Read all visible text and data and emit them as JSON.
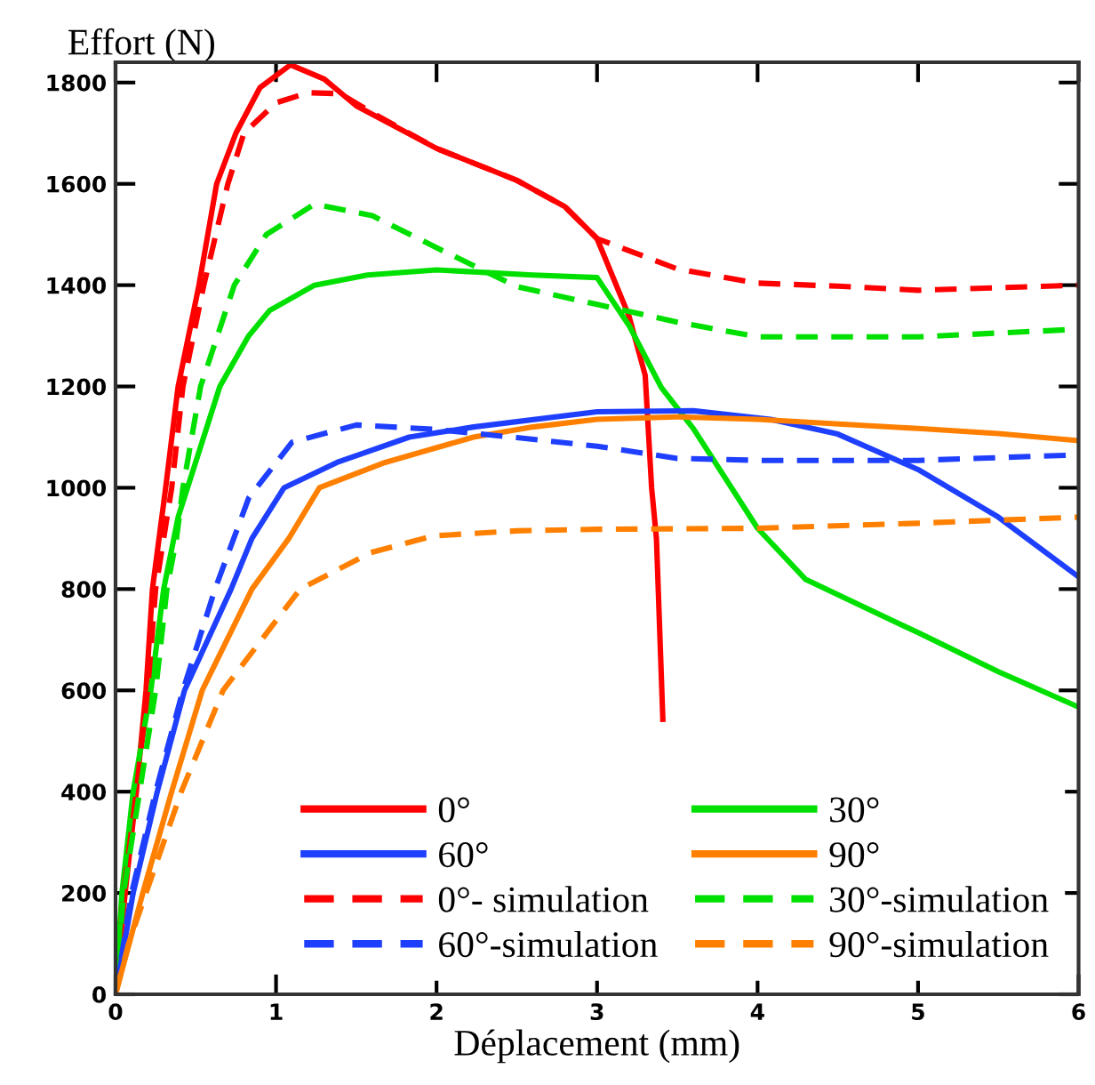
{
  "chart_data": {
    "type": "line",
    "xlabel": "Déplacement (mm)",
    "ylabel": "Effort (N)",
    "xlim": [
      0,
      6
    ],
    "ylim": [
      0,
      1840
    ],
    "xticks": [
      0,
      1,
      2,
      3,
      4,
      5,
      6
    ],
    "yticks": [
      0,
      200,
      400,
      600,
      800,
      1000,
      1200,
      1400,
      1600,
      1800
    ],
    "grid": false,
    "legend": "bottom right",
    "marker": "none",
    "series": [
      {
        "name": "0°",
        "color": "#ff0000",
        "line_style": "solid",
        "x": [
          0,
          0.06,
          0.13,
          0.19,
          0.23,
          0.31,
          0.39,
          0.52,
          0.63,
          0.75,
          0.9,
          1.09,
          1.3,
          1.5,
          2.0,
          2.5,
          2.8,
          3.0,
          3.2,
          3.3,
          3.34,
          3.37,
          3.41
        ],
        "values": [
          0,
          200,
          400,
          600,
          800,
          994,
          1200,
          1400,
          1600,
          1700,
          1790,
          1835,
          1807,
          1754,
          1670,
          1607,
          1555,
          1492,
          1338,
          1222,
          1000,
          900,
          543
        ]
      },
      {
        "name": "30°",
        "color": "#00e000",
        "line_style": "solid",
        "x": [
          0,
          0.04,
          0.11,
          0.22,
          0.3,
          0.39,
          0.65,
          0.83,
          0.96,
          1.24,
          1.57,
          2.0,
          2.6,
          3.0,
          3.2,
          3.4,
          3.6,
          4.0,
          4.3,
          5.0,
          5.5,
          6.0
        ],
        "values": [
          0,
          200,
          400,
          600,
          800,
          942,
          1200,
          1300,
          1350,
          1400,
          1420,
          1430,
          1420,
          1415,
          1320,
          1198,
          1117,
          920,
          819,
          714,
          637,
          567
        ]
      },
      {
        "name": "60°",
        "color": "#1f3fff",
        "line_style": "solid",
        "x": [
          0,
          0.11,
          0.26,
          0.43,
          0.72,
          0.85,
          1.05,
          1.38,
          1.83,
          2.23,
          3.0,
          3.6,
          4.08,
          4.5,
          5.0,
          5.5,
          6.0
        ],
        "values": [
          0,
          200,
          400,
          600,
          800,
          900,
          1000,
          1050,
          1100,
          1120,
          1150,
          1152,
          1135,
          1106,
          1036,
          942,
          824
        ]
      },
      {
        "name": "90°",
        "color": "#ff8000",
        "line_style": "solid",
        "x": [
          0,
          0.17,
          0.35,
          0.54,
          0.85,
          1.08,
          1.27,
          1.68,
          2.23,
          2.6,
          3.0,
          3.5,
          4.0,
          5.0,
          5.5,
          6.0
        ],
        "values": [
          0,
          200,
          400,
          600,
          800,
          900,
          1000,
          1050,
          1100,
          1120,
          1135,
          1140,
          1135,
          1117,
          1107,
          1093
        ]
      },
      {
        "name": "0°- simulation",
        "color": "#ff0000",
        "line_style": "dashed",
        "x": [
          0,
          0.05,
          0.13,
          0.2,
          0.25,
          0.35,
          0.42,
          0.55,
          0.7,
          0.8,
          1.0,
          1.2,
          1.4,
          1.6,
          2.0,
          2.5,
          2.8,
          3.0,
          3.5,
          4.0,
          4.5,
          5.0,
          6.0
        ],
        "values": [
          0,
          200,
          400,
          600,
          800,
          1000,
          1200,
          1400,
          1600,
          1700,
          1760,
          1780,
          1778,
          1740,
          1670,
          1607,
          1555,
          1492,
          1432,
          1404,
          1398,
          1390,
          1400
        ]
      },
      {
        "name": "30°-simulation",
        "color": "#00e000",
        "line_style": "dashed",
        "x": [
          0,
          0.05,
          0.15,
          0.25,
          0.32,
          0.38,
          0.42,
          0.53,
          0.74,
          0.94,
          1.24,
          1.6,
          2.0,
          2.5,
          3.0,
          3.5,
          4.0,
          5.0,
          6.0
        ],
        "values": [
          0,
          200,
          400,
          600,
          800,
          900,
          1000,
          1200,
          1400,
          1500,
          1560,
          1537,
          1474,
          1397,
          1362,
          1327,
          1298,
          1298,
          1313
        ]
      },
      {
        "name": "60°-simulation",
        "color": "#1f3fff",
        "line_style": "dashed",
        "x": [
          0,
          0.1,
          0.25,
          0.42,
          0.62,
          0.83,
          1.1,
          1.5,
          2.0,
          2.5,
          3.0,
          3.5,
          4.0,
          5.0,
          6.0
        ],
        "values": [
          0,
          200,
          400,
          600,
          800,
          980,
          1090,
          1124,
          1115,
          1099,
          1082,
          1058,
          1054,
          1054,
          1065
        ]
      },
      {
        "name": "90°-simulation",
        "color": "#ff8000",
        "line_style": "dashed",
        "x": [
          0,
          0.08,
          0.19,
          0.41,
          0.67,
          1.15,
          1.59,
          1.98,
          2.5,
          3.0,
          4.0,
          5.0,
          6.0
        ],
        "values": [
          0,
          98,
          200,
          400,
          600,
          800,
          872,
          905,
          915,
          918,
          920,
          930,
          942
        ]
      }
    ]
  }
}
